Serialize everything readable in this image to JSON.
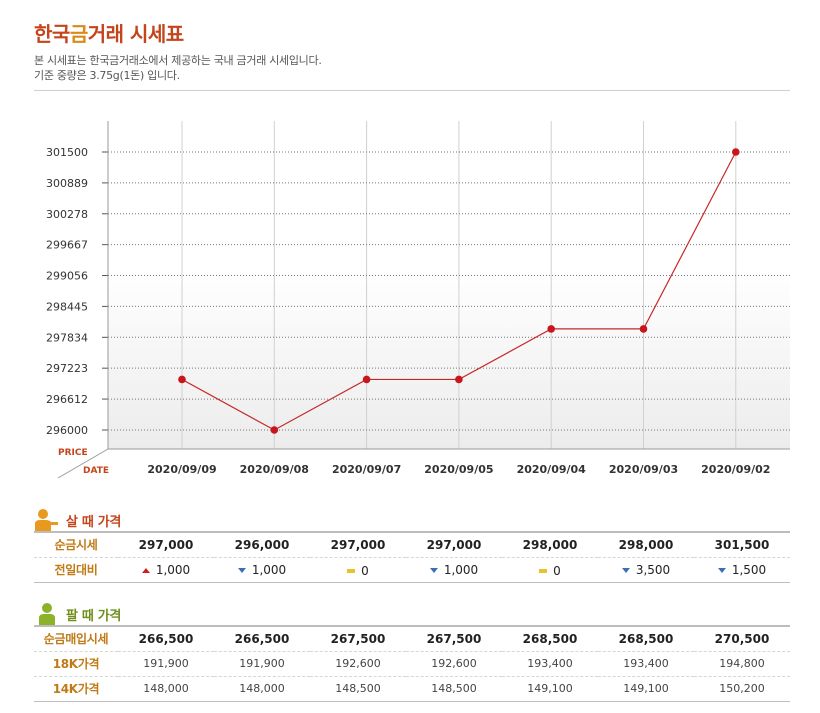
{
  "header": {
    "title_main": "한국",
    "title_accent": "금",
    "title_rest": "거래 시세표",
    "desc1": "본 시세표는 한국금거래소에서 제공하는 국내 금거래 시세입니다.",
    "desc2": "기준 중량은 3.75g(1돈) 입니다."
  },
  "chart_data": {
    "type": "line",
    "x": [
      "2020/09/09",
      "2020/09/08",
      "2020/09/07",
      "2020/09/05",
      "2020/09/04",
      "2020/09/03",
      "2020/09/02"
    ],
    "series": [
      {
        "values": [
          297000,
          296000,
          297000,
          297000,
          298000,
          298000,
          301500
        ]
      }
    ],
    "yticks": [
      296000,
      296612,
      297223,
      297834,
      298445,
      299056,
      299667,
      300278,
      300889,
      301500
    ],
    "ylim": [
      296000,
      301500
    ],
    "ylabel": "PRICE",
    "xlabel": "DATE",
    "grid": true,
    "colors": {
      "line": "#c62828",
      "marker": "#c8161d",
      "grid": "#777777"
    }
  },
  "buy": {
    "title": "살 때 가격",
    "icon": "person-icon",
    "icon_color": "#e89a1e",
    "rows": [
      {
        "label": "순금시세",
        "values": [
          "297,000",
          "296,000",
          "297,000",
          "297,000",
          "298,000",
          "298,000",
          "301,500"
        ]
      }
    ],
    "change_label": "전일대비",
    "changes": [
      {
        "dir": "up",
        "text": "1,000"
      },
      {
        "dir": "down",
        "text": "1,000"
      },
      {
        "dir": "flat",
        "text": "0"
      },
      {
        "dir": "down",
        "text": "1,000"
      },
      {
        "dir": "flat",
        "text": "0"
      },
      {
        "dir": "down",
        "text": "3,500"
      },
      {
        "dir": "down",
        "text": "1,500"
      }
    ]
  },
  "sell": {
    "title": "팔 때 가격",
    "icon": "person-icon",
    "icon_color": "#8bb22a",
    "rows": [
      {
        "label": "순금매입시세",
        "style": "bold",
        "values": [
          "266,500",
          "266,500",
          "267,500",
          "267,500",
          "268,500",
          "268,500",
          "270,500"
        ]
      },
      {
        "label": "18K가격",
        "style": "plain",
        "values": [
          "191,900",
          "191,900",
          "192,600",
          "192,600",
          "193,400",
          "193,400",
          "194,800"
        ]
      },
      {
        "label": "14K가격",
        "style": "plain",
        "values": [
          "148,000",
          "148,000",
          "148,500",
          "148,500",
          "149,100",
          "149,100",
          "150,200"
        ]
      }
    ]
  }
}
